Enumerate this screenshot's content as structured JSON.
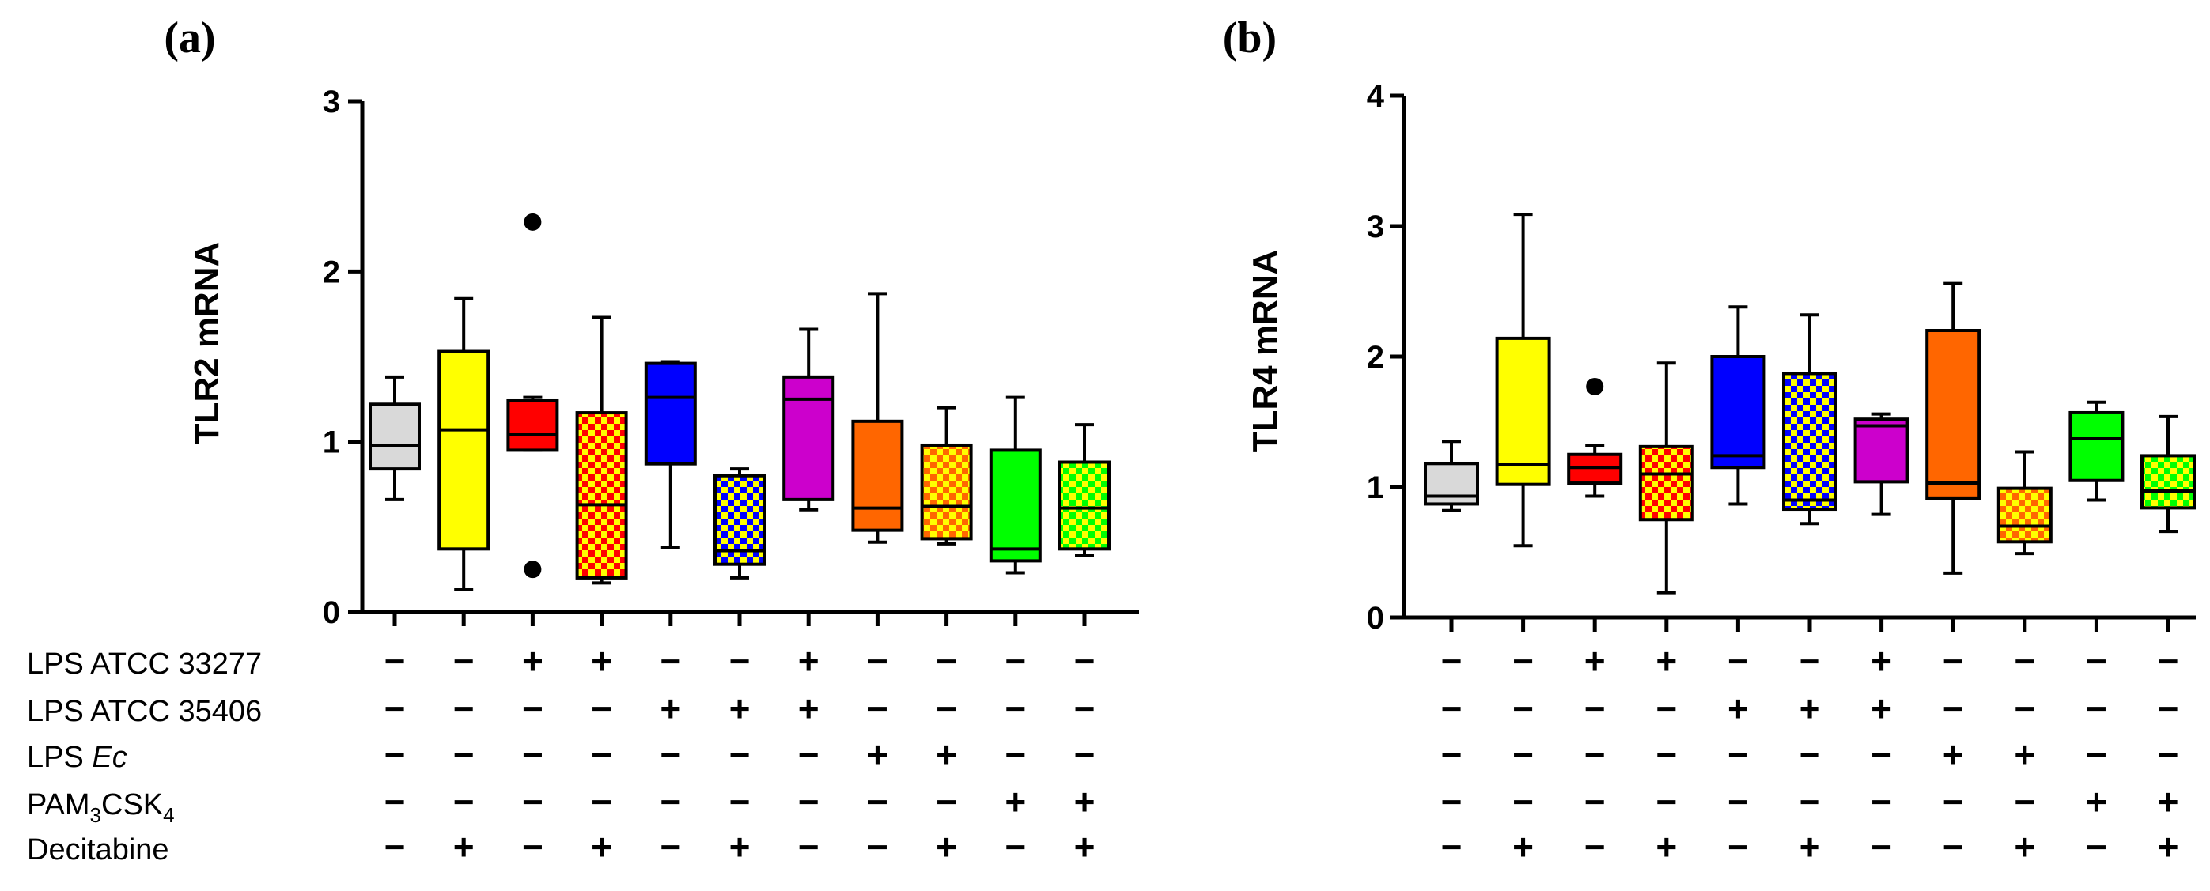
{
  "figure": {
    "rows": [
      {
        "label": "LPS ATCC 33277"
      },
      {
        "label": "LPS ATCC 35406"
      },
      {
        "prefix": "LPS ",
        "italic": "Ec"
      },
      {
        "parts": [
          "PAM",
          "3",
          "CSK",
          "4"
        ]
      },
      {
        "label": "Decitabine"
      }
    ],
    "conditions": [
      [
        0,
        0,
        1,
        1,
        0,
        0,
        1,
        0,
        0,
        0,
        0
      ],
      [
        0,
        0,
        0,
        0,
        1,
        1,
        1,
        0,
        0,
        0,
        0
      ],
      [
        0,
        0,
        0,
        0,
        0,
        0,
        0,
        1,
        1,
        0,
        0
      ],
      [
        0,
        0,
        0,
        0,
        0,
        0,
        0,
        0,
        0,
        1,
        1
      ],
      [
        0,
        1,
        0,
        1,
        0,
        1,
        0,
        0,
        1,
        0,
        1
      ]
    ],
    "sign_plus": "+",
    "sign_minus": "−",
    "groups": [
      {
        "color": "#d9d9d9",
        "pattern": "none"
      },
      {
        "color": "#ffff00",
        "pattern": "none"
      },
      {
        "color": "#ff0000",
        "pattern": "none"
      },
      {
        "color": "#ff0000",
        "pattern": "checker",
        "color2": "#ffff00"
      },
      {
        "color": "#0000ff",
        "pattern": "none"
      },
      {
        "color": "#0000ff",
        "pattern": "checker",
        "color2": "#ffff00"
      },
      {
        "color": "#cc00cc",
        "pattern": "none"
      },
      {
        "color": "#ff6600",
        "pattern": "none"
      },
      {
        "color": "#ff6600",
        "pattern": "checker",
        "color2": "#ffff00"
      },
      {
        "color": "#00ff00",
        "pattern": "none"
      },
      {
        "color": "#00ff00",
        "pattern": "checker",
        "color2": "#ffff00"
      }
    ]
  },
  "chart_data": [
    {
      "type": "box",
      "panel_label": "(a)",
      "ylabel": "TLR2 mRNA",
      "ylim": [
        0,
        3
      ],
      "yticks": [
        0,
        1,
        2,
        3
      ],
      "boxes": [
        {
          "min": 0.66,
          "q1": 0.84,
          "median": 0.98,
          "q3": 1.22,
          "max": 1.38,
          "outliers": []
        },
        {
          "min": 0.13,
          "q1": 0.37,
          "median": 1.07,
          "q3": 1.53,
          "max": 1.84,
          "outliers": []
        },
        {
          "min": 0.95,
          "q1": 0.95,
          "median": 1.04,
          "q3": 1.24,
          "max": 1.26,
          "outliers": [
            2.29,
            0.25
          ]
        },
        {
          "min": 0.17,
          "q1": 0.2,
          "median": 0.63,
          "q3": 1.17,
          "max": 1.73,
          "outliers": []
        },
        {
          "min": 0.38,
          "q1": 0.87,
          "median": 1.26,
          "q3": 1.46,
          "max": 1.47,
          "outliers": []
        },
        {
          "min": 0.2,
          "q1": 0.28,
          "median": 0.36,
          "q3": 0.8,
          "max": 0.84,
          "outliers": []
        },
        {
          "min": 0.6,
          "q1": 0.66,
          "median": 1.25,
          "q3": 1.38,
          "max": 1.66,
          "outliers": []
        },
        {
          "min": 0.41,
          "q1": 0.48,
          "median": 0.61,
          "q3": 1.12,
          "max": 1.87,
          "outliers": []
        },
        {
          "min": 0.4,
          "q1": 0.43,
          "median": 0.62,
          "q3": 0.98,
          "max": 1.2,
          "outliers": []
        },
        {
          "min": 0.23,
          "q1": 0.3,
          "median": 0.37,
          "q3": 0.95,
          "max": 1.26,
          "outliers": []
        },
        {
          "min": 0.33,
          "q1": 0.37,
          "median": 0.61,
          "q3": 0.88,
          "max": 1.1,
          "outliers": []
        }
      ]
    },
    {
      "type": "box",
      "panel_label": "(b)",
      "ylabel": "TLR4 mRNA",
      "ylim": [
        0,
        4
      ],
      "yticks": [
        0,
        1,
        2,
        3,
        4
      ],
      "boxes": [
        {
          "min": 0.82,
          "q1": 0.87,
          "median": 0.93,
          "q3": 1.18,
          "max": 1.35,
          "outliers": []
        },
        {
          "min": 0.55,
          "q1": 1.02,
          "median": 1.17,
          "q3": 2.14,
          "max": 3.09,
          "outliers": []
        },
        {
          "min": 0.93,
          "q1": 1.03,
          "median": 1.15,
          "q3": 1.25,
          "max": 1.32,
          "outliers": [
            1.77
          ]
        },
        {
          "min": 0.19,
          "q1": 0.75,
          "median": 1.1,
          "q3": 1.31,
          "max": 1.95,
          "outliers": []
        },
        {
          "min": 0.87,
          "q1": 1.15,
          "median": 1.24,
          "q3": 2.0,
          "max": 2.38,
          "outliers": []
        },
        {
          "min": 0.72,
          "q1": 0.83,
          "median": 0.9,
          "q3": 1.87,
          "max": 2.32,
          "outliers": []
        },
        {
          "min": 0.79,
          "q1": 1.04,
          "median": 1.47,
          "q3": 1.52,
          "max": 1.56,
          "outliers": []
        },
        {
          "min": 0.34,
          "q1": 0.91,
          "median": 1.03,
          "q3": 2.2,
          "max": 2.56,
          "outliers": []
        },
        {
          "min": 0.49,
          "q1": 0.58,
          "median": 0.7,
          "q3": 0.99,
          "max": 1.27,
          "outliers": []
        },
        {
          "min": 0.9,
          "q1": 1.05,
          "median": 1.37,
          "q3": 1.57,
          "max": 1.65,
          "outliers": []
        },
        {
          "min": 0.66,
          "q1": 0.84,
          "median": 0.97,
          "q3": 1.24,
          "max": 1.54,
          "outliers": []
        }
      ]
    }
  ]
}
